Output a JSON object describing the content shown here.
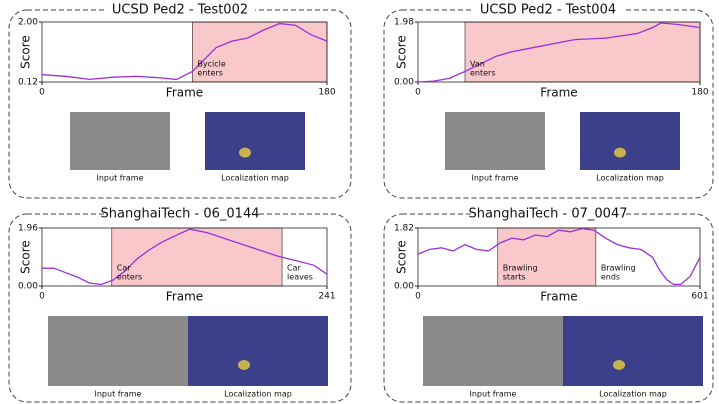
{
  "chart_data": [
    {
      "type": "line",
      "title": "UCSD Ped2 - Test002",
      "x_label": "Frame",
      "y_label": "Score",
      "xlim": [
        0,
        180
      ],
      "ylim": [
        0.12,
        2.0
      ],
      "xticks": [
        0,
        180
      ],
      "yticks": [
        0.12,
        {
          "value": 2.0,
          "label": "2.00"
        }
      ],
      "highlight": [
        95,
        180
      ],
      "highlight_color": "#f8c8cb",
      "annotations": [
        [
          "Bycicle",
          "enters"
        ]
      ],
      "series": [
        {
          "color": "#9b30d9",
          "x": [
            0,
            15,
            30,
            45,
            60,
            75,
            85,
            95,
            110,
            120,
            130,
            140,
            150,
            160,
            170,
            180
          ],
          "values": [
            0.35,
            0.3,
            0.2,
            0.27,
            0.3,
            0.25,
            0.2,
            0.45,
            1.2,
            1.4,
            1.5,
            1.75,
            1.95,
            1.9,
            1.6,
            1.4
          ]
        }
      ],
      "image_captions": [
        "Input frame",
        "Localization map"
      ]
    },
    {
      "type": "line",
      "title": "UCSD Ped2 - Test004",
      "x_label": "Frame",
      "y_label": "Score",
      "xlim": [
        0,
        180
      ],
      "ylim": [
        0,
        1.98
      ],
      "xticks": [
        0,
        180
      ],
      "yticks": [
        {
          "value": 0,
          "label": "0.00"
        },
        1.98
      ],
      "highlight": [
        30,
        180
      ],
      "highlight_color": "#f8c8cb",
      "annotations": [
        [
          "Van",
          "enters"
        ]
      ],
      "series": [
        {
          "color": "#9b30d9",
          "x": [
            0,
            10,
            20,
            30,
            40,
            50,
            60,
            70,
            85,
            100,
            120,
            140,
            150,
            155,
            165,
            180
          ],
          "values": [
            0.0,
            0.03,
            0.12,
            0.35,
            0.6,
            0.85,
            1.0,
            1.1,
            1.25,
            1.4,
            1.45,
            1.6,
            1.8,
            1.95,
            1.9,
            1.8
          ]
        }
      ],
      "image_captions": [
        "Input frame",
        "Localization map"
      ]
    },
    {
      "type": "line",
      "title": "ShanghaiTech - 06_0144",
      "x_label": "Frame",
      "y_label": "Score",
      "xlim": [
        0,
        241
      ],
      "ylim": [
        0,
        1.96
      ],
      "xticks": [
        0,
        241
      ],
      "yticks": [
        {
          "value": 0,
          "label": "0.00"
        },
        1.96
      ],
      "highlight": [
        59,
        203
      ],
      "highlight_color": "#f8c8cb",
      "annotations": [
        [
          "Car",
          "enters"
        ],
        [
          "Car",
          "leaves"
        ]
      ],
      "series": [
        {
          "color": "#9b30d9",
          "x": [
            0,
            10,
            20,
            30,
            40,
            50,
            60,
            70,
            80,
            90,
            100,
            110,
            125,
            140,
            155,
            170,
            185,
            200,
            215,
            230,
            241
          ],
          "values": [
            0.6,
            0.6,
            0.45,
            0.3,
            0.1,
            0.05,
            0.2,
            0.5,
            0.9,
            1.2,
            1.45,
            1.65,
            1.92,
            1.8,
            1.6,
            1.4,
            1.2,
            1.0,
            0.85,
            0.7,
            0.4
          ]
        }
      ],
      "image_captions": [
        "Input frame",
        "Localization map"
      ]
    },
    {
      "type": "line",
      "title": "ShanghaiTech - 07_0047",
      "x_label": "Frame",
      "y_label": "Score",
      "xlim": [
        0,
        601
      ],
      "ylim": [
        0,
        1.82
      ],
      "xticks": [
        0,
        601
      ],
      "yticks": [
        {
          "value": 0,
          "label": "0.00"
        },
        1.82
      ],
      "highlight": [
        170,
        379
      ],
      "highlight_color": "#f8c8cb",
      "annotations": [
        [
          "Brawling",
          "starts"
        ],
        [
          "Brawling",
          "ends"
        ]
      ],
      "series": [
        {
          "color": "#9b30d9",
          "x": [
            0,
            25,
            50,
            75,
            100,
            125,
            150,
            175,
            200,
            225,
            250,
            275,
            300,
            325,
            350,
            375,
            400,
            425,
            450,
            475,
            500,
            515,
            530,
            545,
            560,
            580,
            601
          ],
          "values": [
            1.0,
            1.15,
            1.2,
            1.1,
            1.3,
            1.15,
            1.1,
            1.35,
            1.5,
            1.45,
            1.6,
            1.55,
            1.75,
            1.7,
            1.8,
            1.75,
            1.5,
            1.3,
            1.2,
            1.15,
            0.9,
            0.5,
            0.2,
            0.05,
            0.05,
            0.3,
            0.9
          ]
        }
      ],
      "image_captions": [
        "Input frame",
        "Localization map"
      ]
    }
  ]
}
